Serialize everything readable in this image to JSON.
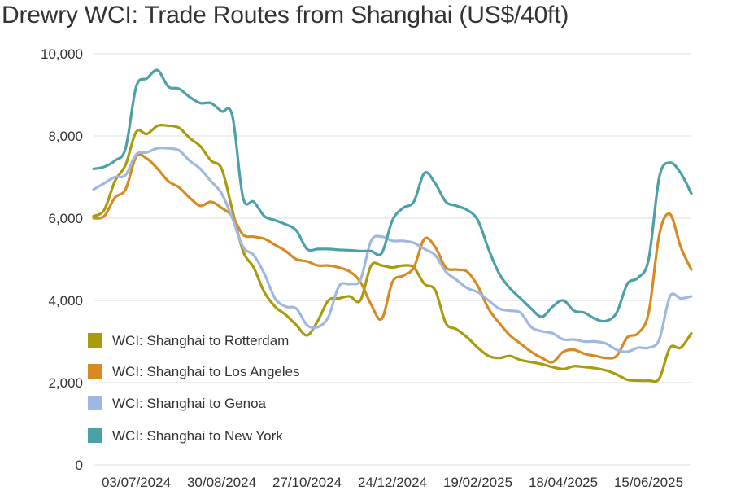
{
  "chart_data": {
    "type": "line",
    "title": "Drewry WCI: Trade Routes from Shanghai (US$/40ft)",
    "xlabel": "",
    "ylabel": "",
    "ylim": [
      0,
      10000
    ],
    "yticks": [
      "0",
      "2,000",
      "4,000",
      "6,000",
      "8,000",
      "10,000"
    ],
    "ytick_values": [
      0,
      2000,
      4000,
      6000,
      8000,
      10000
    ],
    "x_tick_labels": [
      "03/07/2024",
      "30/08/2024",
      "27/10/2024",
      "24/12/2024",
      "19/02/2025",
      "18/04/2025",
      "15/06/2025"
    ],
    "x_tick_index": [
      4,
      12,
      20,
      28,
      36,
      44,
      52
    ],
    "grid": true,
    "legend_position": "bottom-left",
    "series": [
      {
        "name": "WCI: Shanghai to Rotterdam",
        "color": "#a89b0c",
        "values": [
          6050,
          6200,
          6900,
          7300,
          8100,
          8050,
          8250,
          8250,
          8200,
          7950,
          7750,
          7400,
          7200,
          6200,
          5200,
          4800,
          4200,
          3850,
          3650,
          3400,
          3150,
          3500,
          4000,
          4050,
          4100,
          4000,
          4850,
          4850,
          4800,
          4850,
          4800,
          4400,
          4250,
          3450,
          3300,
          3100,
          2850,
          2650,
          2600,
          2650,
          2550,
          2500,
          2450,
          2380,
          2330,
          2400,
          2380,
          2350,
          2300,
          2200,
          2070,
          2050,
          2050,
          2100,
          2850,
          2850,
          3200
        ]
      },
      {
        "name": "WCI: Shanghai to Los Angeles",
        "color": "#d88a22",
        "values": [
          6000,
          6050,
          6500,
          6700,
          7500,
          7450,
          7200,
          6900,
          6750,
          6500,
          6300,
          6400,
          6250,
          6050,
          5600,
          5550,
          5500,
          5350,
          5200,
          5000,
          4950,
          4850,
          4850,
          4800,
          4700,
          4450,
          3900,
          3550,
          4450,
          4600,
          4800,
          5500,
          5300,
          4800,
          4750,
          4700,
          4350,
          3800,
          3450,
          3150,
          2950,
          2750,
          2600,
          2500,
          2750,
          2800,
          2700,
          2650,
          2600,
          2650,
          3100,
          3200,
          3700,
          5600,
          6100,
          5300,
          4750
        ]
      },
      {
        "name": "WCI: Shanghai to Genoa",
        "color": "#9fb8e2",
        "values": [
          6700,
          6850,
          7000,
          7050,
          7550,
          7600,
          7700,
          7700,
          7650,
          7400,
          7200,
          6900,
          6600,
          6000,
          5300,
          5100,
          4650,
          4050,
          3850,
          3800,
          3400,
          3350,
          3600,
          4350,
          4400,
          4500,
          5450,
          5550,
          5450,
          5450,
          5400,
          5250,
          5100,
          4700,
          4500,
          4300,
          4200,
          4000,
          3800,
          3750,
          3700,
          3350,
          3250,
          3200,
          3050,
          3050,
          3000,
          3000,
          2950,
          2800,
          2750,
          2850,
          2850,
          3050,
          4100,
          4050,
          4100
        ]
      },
      {
        "name": "WCI: Shanghai to New York",
        "color": "#4ca0a8",
        "values": [
          7200,
          7250,
          7400,
          7700,
          9200,
          9400,
          9600,
          9200,
          9150,
          8950,
          8800,
          8800,
          8600,
          8500,
          6500,
          6400,
          6050,
          5950,
          5850,
          5700,
          5250,
          5250,
          5250,
          5230,
          5220,
          5200,
          5200,
          5150,
          5950,
          6250,
          6400,
          7100,
          6850,
          6400,
          6300,
          6200,
          5950,
          5250,
          4650,
          4300,
          4050,
          3800,
          3600,
          3850,
          4000,
          3750,
          3700,
          3550,
          3500,
          3700,
          4400,
          4550,
          5000,
          7000,
          7350,
          7100,
          6600
        ]
      }
    ]
  }
}
